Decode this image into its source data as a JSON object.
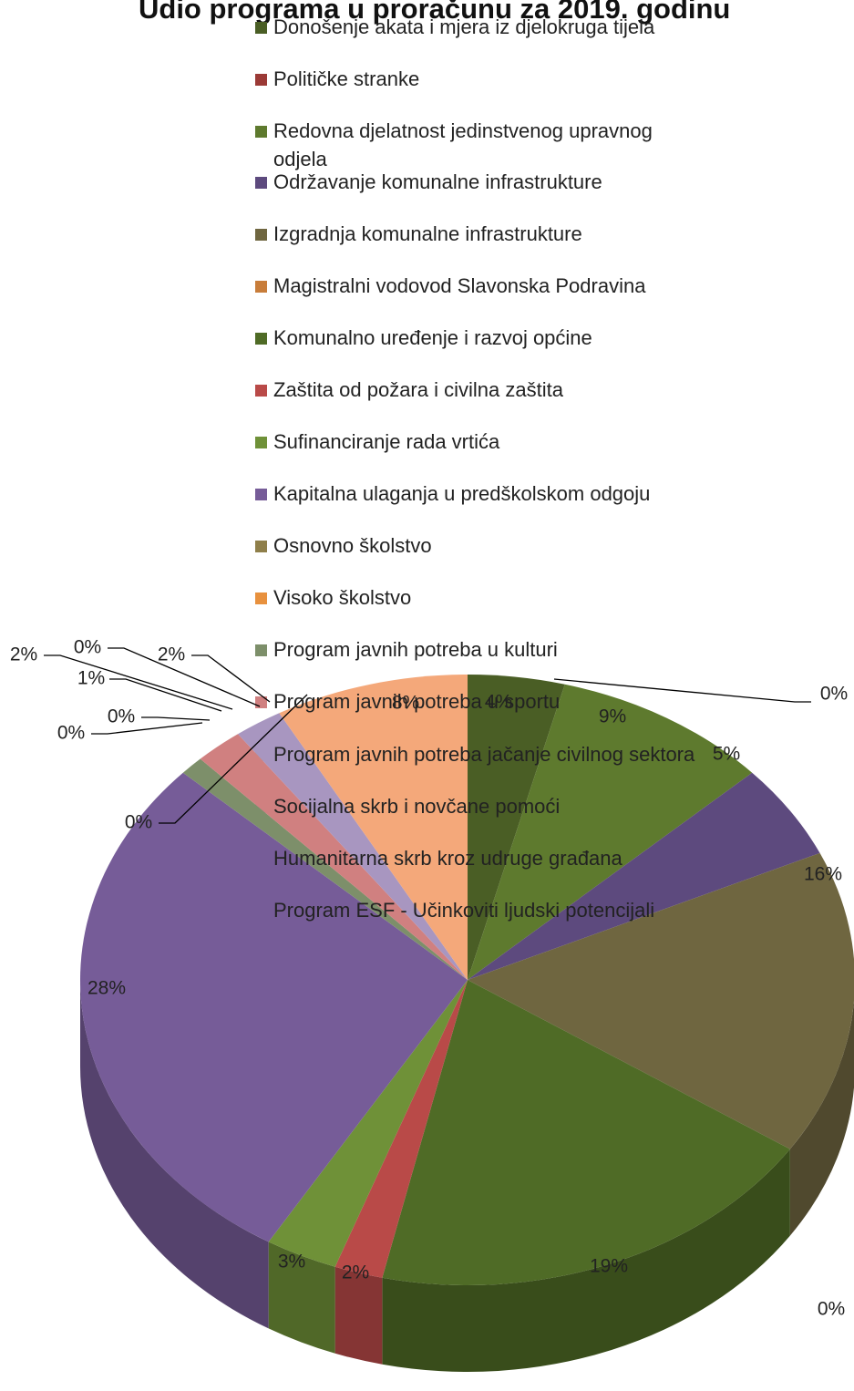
{
  "chart_data": {
    "type": "pie3d",
    "title": "Udio programa u proračunu za 2019. godinu",
    "categories": [
      "Donošenje akata i mjera iz djelokruga tijela",
      "Političke stranke",
      "Redovna djelatnost jedinstvenog upravnog odjela",
      "Održavanje komunalne infrastrukture",
      "Izgradnja komunalne infrastrukture",
      "Magistralni vodovod Slavonska Podravina",
      "Komunalno uređenje i razvoj općine",
      "Zaštita od požara i civilna zaštita",
      "Sufinanciranje rada vrtića",
      "Kapitalna ulaganja u predškolskom odgoju",
      "Osnovno školstvo",
      "Visoko školstvo",
      "Program javnih potreba u kulturi",
      "Program javnih potreba u sportu",
      "Program javnih potreba jačanje civilnog sektora",
      "Socijalna skrb i novčane pomoći",
      "Humanitarna skrb kroz udruge građana",
      "Program ESF - Učinkoviti ljudski potencijali"
    ],
    "values": [
      4,
      0,
      9,
      5,
      16,
      0,
      19,
      2,
      3,
      28,
      0,
      0,
      1,
      2,
      0,
      2,
      0,
      8
    ],
    "value_labels": [
      "4%",
      "0%",
      "9%",
      "5%",
      "16%",
      "0%",
      "19%",
      "2%",
      "3%",
      "28%",
      "0%",
      "0%",
      "1%",
      "2%",
      "0%",
      "2%",
      "0%",
      "8%"
    ],
    "colors": [
      "#4a5e25",
      "#9b3a36",
      "#5e7a2e",
      "#5d4a7e",
      "#6f6640",
      "#c87d3a",
      "#4f6b26",
      "#b94a48",
      "#6f9138",
      "#765c98",
      "#8f7f4a",
      "#e8913e",
      "#7d8f6a",
      "#d08080",
      "#9fb77e",
      "#a896c0",
      "#b4ae8a",
      "#f4a87a"
    ],
    "legend": "top-right"
  }
}
